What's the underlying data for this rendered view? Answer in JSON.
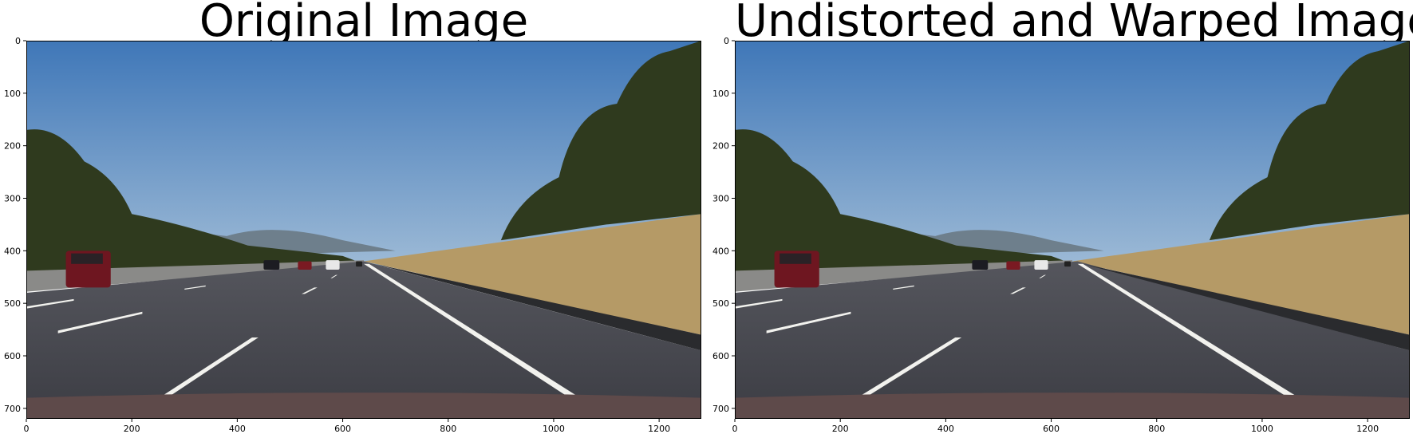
{
  "figure": {
    "left": {
      "title": "Original Image",
      "x_ticks": [
        "0",
        "200",
        "400",
        "600",
        "800",
        "1000",
        "1200"
      ],
      "y_ticks": [
        "0",
        "100",
        "200",
        "300",
        "400",
        "500",
        "600",
        "700"
      ],
      "xlim": [
        0,
        1280
      ],
      "ylim": [
        720,
        0
      ]
    },
    "right": {
      "title": "Undistorted and Warped Image",
      "x_ticks": [
        "0",
        "200",
        "400",
        "600",
        "800",
        "1000",
        "1200"
      ],
      "y_ticks": [
        "0",
        "100",
        "200",
        "300",
        "400",
        "500",
        "600",
        "700"
      ],
      "xlim": [
        0,
        1280
      ],
      "ylim": [
        720,
        0
      ]
    }
  },
  "colors": {
    "sky_top": "#3f77b8",
    "sky_bottom": "#9dbad6",
    "road": "#3c3d44",
    "grass": "#b59a66",
    "trees": "#2f3a1e",
    "lane_marking": "#f2f2ee",
    "hood": "#5e4a4a"
  }
}
